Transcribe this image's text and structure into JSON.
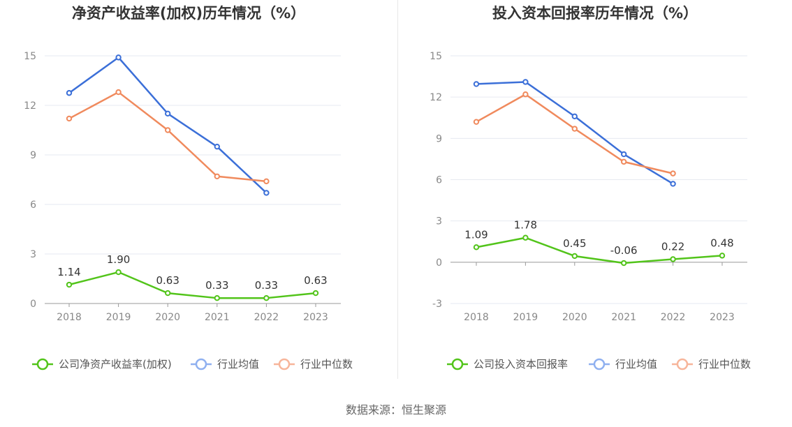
{
  "chart_data": [
    {
      "type": "line",
      "title": "净资产收益率(加权)历年情况（%）",
      "categories": [
        "2018",
        "2019",
        "2020",
        "2021",
        "2022",
        "2023"
      ],
      "ylim": [
        0,
        15
      ],
      "yticks": [
        0,
        3,
        6,
        9,
        12,
        15
      ],
      "grid": true,
      "legend_position": "bottom",
      "series": [
        {
          "name": "公司净资产收益率(加权)",
          "color": "#52c41a",
          "values": [
            1.14,
            1.9,
            0.63,
            0.33,
            0.33,
            0.63
          ],
          "labels": [
            "1.14",
            "1.90",
            "0.63",
            "0.33",
            "0.33",
            "0.63"
          ]
        },
        {
          "name": "行业均值",
          "color": "#3b6fd8",
          "values": [
            12.75,
            14.9,
            11.5,
            9.5,
            6.7,
            null
          ]
        },
        {
          "name": "行业中位数",
          "color": "#f08a5d",
          "values": [
            11.2,
            12.8,
            10.5,
            7.7,
            7.4,
            null
          ]
        }
      ]
    },
    {
      "type": "line",
      "title": "投入资本回报率历年情况（%）",
      "categories": [
        "2018",
        "2019",
        "2020",
        "2021",
        "2022",
        "2023"
      ],
      "ylim": [
        -3,
        15
      ],
      "yticks": [
        -3,
        0,
        3,
        6,
        9,
        12,
        15
      ],
      "grid": true,
      "legend_position": "bottom",
      "series": [
        {
          "name": "公司投入资本回报率",
          "color": "#52c41a",
          "values": [
            1.09,
            1.78,
            0.45,
            -0.06,
            0.22,
            0.48
          ],
          "labels": [
            "1.09",
            "1.78",
            "0.45",
            "-0.06",
            "0.22",
            "0.48"
          ]
        },
        {
          "name": "行业均值",
          "color": "#3b6fd8",
          "values": [
            12.95,
            13.1,
            10.6,
            7.85,
            5.7,
            null
          ]
        },
        {
          "name": "行业中位数",
          "color": "#f08a5d",
          "values": [
            10.2,
            12.2,
            9.7,
            7.3,
            6.45,
            null
          ]
        }
      ]
    }
  ],
  "legend_colors": {
    "行业均值": "#8fb0f0",
    "行业中位数": "#f7b59a"
  },
  "source": "数据来源：恒生聚源"
}
